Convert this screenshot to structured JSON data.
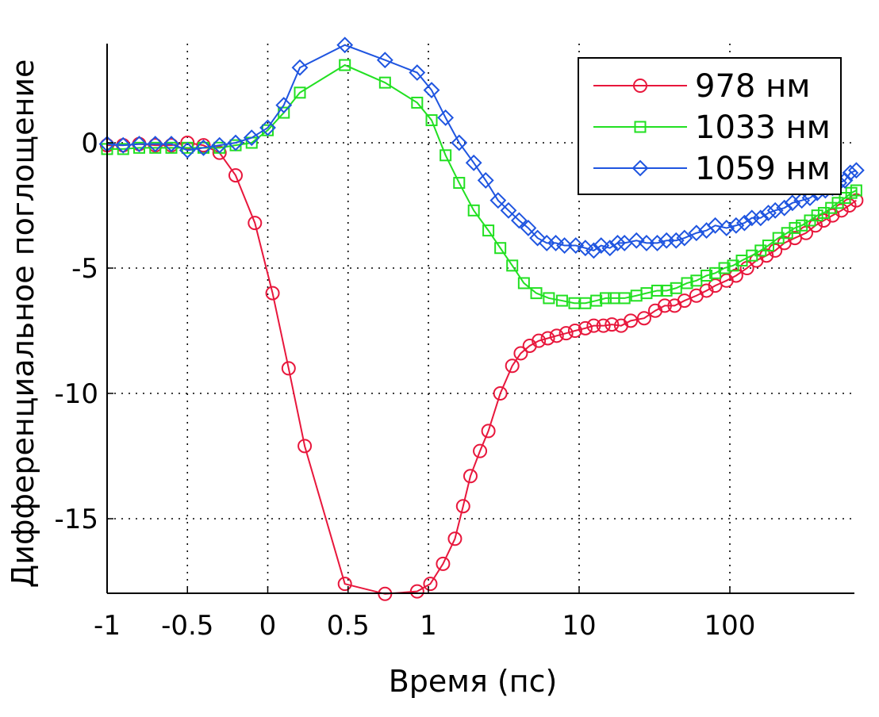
{
  "chart_data": {
    "type": "line",
    "title": "",
    "xlabel": "Время (пс)",
    "ylabel": "Дифференциальное поглощение",
    "x_scale": "linear from -1 to 1 ps, logarithmic from 1 ps upward",
    "xlim": [
      -1,
      700
    ],
    "ylim": [
      -18,
      4
    ],
    "x_ticks": [
      -1,
      -0.5,
      0,
      0.5,
      1,
      10,
      100
    ],
    "x_tick_labels": [
      "-1",
      "-0.5",
      "0",
      "0.5",
      "1",
      "10",
      "100"
    ],
    "y_ticks": [
      0,
      -5,
      -10,
      -15
    ],
    "y_tick_labels": [
      "0",
      "-5",
      "-10",
      "-15"
    ],
    "grid": true,
    "legend_position": "top-right",
    "series": [
      {
        "name": "978 нм",
        "color": "#e8173c",
        "marker": "circle",
        "points": [
          [
            -1,
            -0.1
          ],
          [
            -0.9,
            -0.1
          ],
          [
            -0.8,
            -0.05
          ],
          [
            -0.7,
            -0.1
          ],
          [
            -0.6,
            -0.1
          ],
          [
            -0.5,
            0.0
          ],
          [
            -0.4,
            -0.1
          ],
          [
            -0.3,
            -0.4
          ],
          [
            -0.2,
            -1.3
          ],
          [
            -0.08,
            -3.2
          ],
          [
            0.03,
            -6.0
          ],
          [
            0.13,
            -9.0
          ],
          [
            0.23,
            -12.1
          ],
          [
            0.48,
            -17.6
          ],
          [
            0.73,
            -18.0
          ],
          [
            0.93,
            -17.9
          ],
          [
            1.03,
            -17.6
          ],
          [
            1.25,
            -16.8
          ],
          [
            1.5,
            -15.8
          ],
          [
            1.7,
            -14.5
          ],
          [
            1.9,
            -13.3
          ],
          [
            2.2,
            -12.3
          ],
          [
            2.5,
            -11.5
          ],
          [
            3.0,
            -10.0
          ],
          [
            3.6,
            -8.9
          ],
          [
            4.1,
            -8.4
          ],
          [
            4.7,
            -8.1
          ],
          [
            5.4,
            -7.9
          ],
          [
            6.2,
            -7.8
          ],
          [
            7.1,
            -7.7
          ],
          [
            8.2,
            -7.6
          ],
          [
            9.4,
            -7.5
          ],
          [
            11,
            -7.4
          ],
          [
            12.5,
            -7.3
          ],
          [
            14.5,
            -7.3
          ],
          [
            16.5,
            -7.25
          ],
          [
            19,
            -7.3
          ],
          [
            22,
            -7.1
          ],
          [
            27,
            -7.0
          ],
          [
            32,
            -6.7
          ],
          [
            37,
            -6.5
          ],
          [
            43,
            -6.5
          ],
          [
            50,
            -6.3
          ],
          [
            60,
            -6.1
          ],
          [
            70,
            -5.9
          ],
          [
            80,
            -5.7
          ],
          [
            95,
            -5.5
          ],
          [
            110,
            -5.3
          ],
          [
            130,
            -5.0
          ],
          [
            150,
            -4.7
          ],
          [
            175,
            -4.5
          ],
          [
            200,
            -4.3
          ],
          [
            230,
            -4.0
          ],
          [
            270,
            -3.8
          ],
          [
            320,
            -3.6
          ],
          [
            370,
            -3.3
          ],
          [
            420,
            -3.1
          ],
          [
            480,
            -2.9
          ],
          [
            550,
            -2.7
          ],
          [
            620,
            -2.5
          ],
          [
            690,
            -2.3
          ]
        ]
      },
      {
        "name": "1033 нм",
        "color": "#22e022",
        "marker": "square",
        "points": [
          [
            -1,
            -0.25
          ],
          [
            -0.9,
            -0.25
          ],
          [
            -0.8,
            -0.2
          ],
          [
            -0.7,
            -0.2
          ],
          [
            -0.6,
            -0.2
          ],
          [
            -0.5,
            -0.2
          ],
          [
            -0.4,
            -0.2
          ],
          [
            -0.3,
            -0.2
          ],
          [
            -0.2,
            -0.1
          ],
          [
            -0.1,
            0.0
          ],
          [
            0.0,
            0.5
          ],
          [
            0.1,
            1.2
          ],
          [
            0.2,
            2.0
          ],
          [
            0.48,
            3.1
          ],
          [
            0.73,
            2.4
          ],
          [
            0.93,
            1.6
          ],
          [
            1.05,
            0.9
          ],
          [
            1.3,
            -0.5
          ],
          [
            1.6,
            -1.6
          ],
          [
            2.0,
            -2.7
          ],
          [
            2.5,
            -3.5
          ],
          [
            3.0,
            -4.2
          ],
          [
            3.6,
            -4.9
          ],
          [
            4.3,
            -5.6
          ],
          [
            5.2,
            -6.0
          ],
          [
            6.3,
            -6.2
          ],
          [
            7.7,
            -6.3
          ],
          [
            9.3,
            -6.4
          ],
          [
            11,
            -6.4
          ],
          [
            13,
            -6.3
          ],
          [
            15,
            -6.2
          ],
          [
            17,
            -6.2
          ],
          [
            20,
            -6.2
          ],
          [
            24,
            -6.1
          ],
          [
            28,
            -6.0
          ],
          [
            33,
            -5.9
          ],
          [
            38,
            -5.9
          ],
          [
            44,
            -5.8
          ],
          [
            52,
            -5.6
          ],
          [
            60,
            -5.5
          ],
          [
            70,
            -5.3
          ],
          [
            80,
            -5.2
          ],
          [
            92,
            -5.0
          ],
          [
            105,
            -4.9
          ],
          [
            120,
            -4.7
          ],
          [
            140,
            -4.5
          ],
          [
            160,
            -4.3
          ],
          [
            180,
            -4.1
          ],
          [
            210,
            -3.8
          ],
          [
            240,
            -3.6
          ],
          [
            270,
            -3.4
          ],
          [
            300,
            -3.3
          ],
          [
            340,
            -3.1
          ],
          [
            380,
            -2.9
          ],
          [
            420,
            -2.8
          ],
          [
            470,
            -2.6
          ],
          [
            520,
            -2.4
          ],
          [
            580,
            -2.2
          ],
          [
            640,
            -2.0
          ],
          [
            690,
            -1.9
          ]
        ]
      },
      {
        "name": "1059 нм",
        "color": "#1f55e0",
        "marker": "diamond",
        "points": [
          [
            -1,
            -0.05
          ],
          [
            -0.9,
            -0.1
          ],
          [
            -0.8,
            -0.05
          ],
          [
            -0.7,
            -0.05
          ],
          [
            -0.6,
            -0.05
          ],
          [
            -0.5,
            -0.3
          ],
          [
            -0.4,
            -0.2
          ],
          [
            -0.3,
            -0.1
          ],
          [
            -0.2,
            0.0
          ],
          [
            -0.1,
            0.2
          ],
          [
            0.0,
            0.6
          ],
          [
            0.1,
            1.5
          ],
          [
            0.2,
            3.0
          ],
          [
            0.48,
            3.9
          ],
          [
            0.73,
            3.3
          ],
          [
            0.93,
            2.8
          ],
          [
            1.05,
            2.1
          ],
          [
            1.3,
            1.0
          ],
          [
            1.6,
            0.0
          ],
          [
            2.0,
            -0.8
          ],
          [
            2.4,
            -1.5
          ],
          [
            2.9,
            -2.3
          ],
          [
            3.4,
            -2.7
          ],
          [
            4.0,
            -3.1
          ],
          [
            4.6,
            -3.4
          ],
          [
            5.3,
            -3.8
          ],
          [
            6.1,
            -4.0
          ],
          [
            7.0,
            -4.0
          ],
          [
            8.0,
            -4.1
          ],
          [
            9.5,
            -4.1
          ],
          [
            11,
            -4.2
          ],
          [
            12.5,
            -4.3
          ],
          [
            14,
            -4.1
          ],
          [
            16,
            -4.2
          ],
          [
            18,
            -4.0
          ],
          [
            20,
            -4.0
          ],
          [
            24,
            -3.9
          ],
          [
            28,
            -4.0
          ],
          [
            33,
            -4.0
          ],
          [
            38,
            -3.9
          ],
          [
            44,
            -3.9
          ],
          [
            50,
            -3.8
          ],
          [
            60,
            -3.6
          ],
          [
            70,
            -3.5
          ],
          [
            80,
            -3.3
          ],
          [
            95,
            -3.4
          ],
          [
            110,
            -3.3
          ],
          [
            125,
            -3.2
          ],
          [
            140,
            -3.0
          ],
          [
            160,
            -3.0
          ],
          [
            180,
            -2.8
          ],
          [
            200,
            -2.7
          ],
          [
            230,
            -2.6
          ],
          [
            260,
            -2.4
          ],
          [
            300,
            -2.3
          ],
          [
            340,
            -2.2
          ],
          [
            380,
            -2.0
          ],
          [
            430,
            -1.9
          ],
          [
            480,
            -1.8
          ],
          [
            530,
            -1.6
          ],
          [
            580,
            -1.5
          ],
          [
            630,
            -1.2
          ],
          [
            690,
            -1.1
          ]
        ]
      }
    ]
  }
}
